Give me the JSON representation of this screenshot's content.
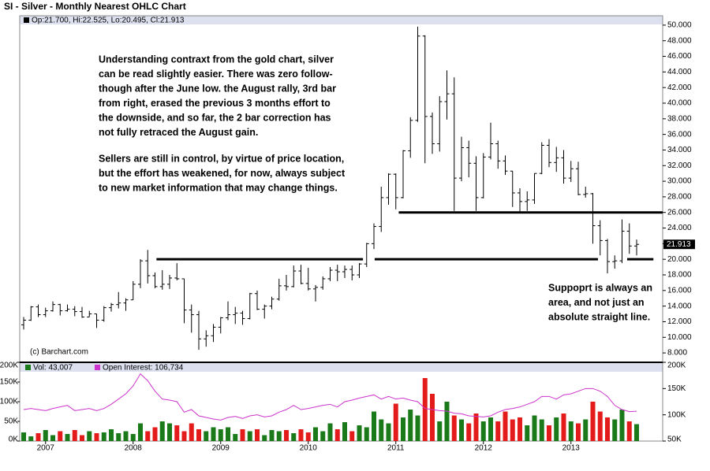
{
  "chart_data": {
    "type": "ohlc",
    "title": "SI - Silver - Monthly Nearest OHLC Chart",
    "price_legend": "Op:21.700, Hi:22.525, Lo:20.495, Cl:21.913",
    "volume_legend": "Vol: 43,007",
    "oi_legend": "Open Interest: 106,734",
    "copyright": "(c) Barchart.com",
    "last_label": "21.913",
    "annotations": [
      {
        "lines": [
          "Understanding contraxt from the gold chart, silver",
          "can be read slightly easier.  There was zero follow-",
          "though after the June low.  the August rally, 3rd bar",
          "from right, erased the previous 3 months effort to",
          "the downside,  and so far, the 2 bar correction has",
          "not fully retraced the August gain."
        ]
      },
      {
        "lines": [
          "Sellers are still in control, by virtue of price location,",
          "but the effort has weakened, for now,  always subject",
          "to new market information that may change things."
        ]
      },
      {
        "lines": [
          "Suppoprt is always an",
          "area, and not just an",
          "absolute straight line."
        ]
      }
    ],
    "categories": [
      null,
      null,
      null,
      "2007",
      null,
      null,
      null,
      null,
      null,
      null,
      null,
      null,
      null,
      null,
      null,
      "2008",
      null,
      null,
      null,
      null,
      null,
      null,
      null,
      null,
      null,
      null,
      null,
      "2009",
      null,
      null,
      null,
      null,
      null,
      null,
      null,
      null,
      null,
      null,
      null,
      "2010",
      null,
      null,
      null,
      null,
      null,
      null,
      null,
      null,
      null,
      null,
      null,
      "2011",
      null,
      null,
      null,
      null,
      null,
      null,
      null,
      null,
      null,
      null,
      null,
      "2012",
      null,
      null,
      null,
      null,
      null,
      null,
      null,
      null,
      null,
      null,
      null,
      "2013",
      null,
      null,
      null,
      null,
      null,
      null,
      null,
      null,
      null
    ],
    "ohlc": {
      "color": "#000000",
      "open": [
        11.6,
        12.2,
        13.9,
        12.9,
        13.4,
        14.2,
        13.4,
        13.6,
        13.3,
        12.6,
        13.0,
        12.2,
        13.8,
        14.2,
        14.4,
        14.8,
        16.8,
        19.8,
        17.9,
        16.5,
        16.8,
        17.6,
        17.5,
        13.5,
        12.9,
        9.8,
        10.2,
        11.3,
        12.5,
        12.9,
        13.1,
        12.4,
        15.6,
        13.6,
        14.0,
        14.9,
        16.6,
        16.5,
        18.5,
        16.9,
        16.2,
        16.4,
        17.5,
        18.6,
        18.4,
        18.7,
        18.0,
        19.4,
        22.0,
        24.2,
        27.9,
        30.9,
        27.9,
        33.9,
        37.8,
        48.6,
        38.3,
        34.8,
        40.2,
        41.2,
        30.4,
        34.3,
        32.3,
        27.9,
        33.1,
        34.8,
        32.6,
        31.3,
        28.5,
        27.4,
        27.6,
        31.0,
        34.6,
        32.4,
        33.0,
        30.4,
        31.6,
        28.3,
        28.4,
        24.3,
        22.4,
        19.7,
        19.8,
        23.6,
        21.7
      ],
      "high": [
        12.6,
        14.0,
        14.2,
        13.8,
        14.6,
        14.3,
        14.2,
        14.0,
        13.9,
        13.4,
        13.0,
        14.0,
        14.4,
        15.8,
        15.0,
        17.2,
        20.0,
        21.2,
        18.3,
        18.6,
        18.0,
        19.5,
        17.5,
        14.2,
        13.4,
        10.9,
        11.7,
        12.6,
        14.6,
        13.9,
        13.4,
        15.7,
        16.0,
        14.2,
        15.2,
        17.5,
        18.0,
        19.2,
        19.3,
        18.9,
        16.7,
        17.8,
        19.0,
        19.3,
        19.2,
        19.2,
        19.5,
        22.1,
        24.6,
        29.3,
        31.0,
        31.0,
        34.0,
        38.2,
        49.8,
        48.7,
        38.8,
        40.9,
        44.2,
        43.3,
        35.7,
        35.2,
        33.2,
        33.6,
        37.5,
        35.2,
        33.3,
        31.3,
        29.1,
        28.7,
        31.0,
        35.0,
        35.4,
        34.4,
        34.0,
        32.6,
        32.5,
        29.3,
        28.5,
        25.0,
        22.6,
        20.5,
        25.1,
        24.6,
        22.525
      ],
      "low": [
        11.0,
        12.1,
        12.6,
        12.6,
        13.3,
        12.8,
        13.3,
        12.7,
        12.5,
        12.6,
        11.2,
        12.0,
        13.3,
        13.7,
        13.4,
        14.8,
        16.3,
        16.9,
        16.3,
        16.1,
        16.2,
        17.3,
        11.8,
        10.6,
        8.4,
        8.8,
        9.4,
        10.5,
        12.2,
        11.7,
        11.6,
        12.3,
        13.5,
        12.4,
        13.6,
        14.7,
        16.0,
        16.4,
        16.8,
        16.0,
        14.6,
        16.1,
        17.2,
        17.2,
        17.6,
        17.3,
        17.6,
        19.0,
        21.3,
        23.5,
        27.0,
        26.4,
        27.8,
        33.0,
        37.6,
        32.3,
        33.5,
        33.8,
        37.9,
        26.2,
        30.0,
        30.5,
        26.2,
        27.8,
        32.8,
        31.6,
        30.8,
        26.7,
        26.1,
        26.2,
        27.1,
        30.9,
        31.8,
        31.2,
        29.7,
        29.9,
        28.2,
        27.9,
        22.0,
        20.5,
        18.2,
        18.8,
        19.5,
        20.7,
        20.495
      ],
      "close": [
        12.2,
        13.9,
        12.9,
        13.4,
        14.2,
        13.4,
        13.6,
        13.3,
        12.6,
        13.0,
        12.2,
        13.8,
        14.2,
        14.4,
        14.8,
        16.8,
        19.8,
        17.9,
        16.5,
        16.8,
        17.6,
        17.5,
        13.5,
        12.9,
        9.8,
        10.2,
        11.3,
        12.5,
        12.9,
        13.1,
        12.4,
        15.6,
        13.6,
        14.0,
        14.9,
        16.6,
        16.5,
        18.5,
        16.9,
        16.2,
        16.4,
        17.5,
        18.6,
        18.4,
        18.7,
        18.0,
        19.4,
        22.0,
        24.2,
        27.9,
        30.9,
        27.9,
        33.9,
        37.8,
        48.6,
        38.3,
        34.8,
        40.2,
        41.2,
        30.4,
        34.3,
        32.3,
        27.9,
        33.1,
        34.8,
        32.6,
        31.3,
        28.5,
        27.4,
        27.6,
        31.0,
        34.6,
        32.4,
        33.0,
        30.4,
        31.6,
        28.3,
        28.4,
        24.3,
        22.4,
        19.7,
        19.8,
        23.6,
        21.7,
        21.913
      ]
    },
    "volume": {
      "up_color": "#1a7a1a",
      "down_color": "#e31b1b",
      "values": [
        22000,
        12000,
        20000,
        28000,
        15000,
        25000,
        18000,
        28000,
        15000,
        25000,
        20000,
        22000,
        30000,
        20000,
        25000,
        18000,
        45000,
        25000,
        35000,
        50000,
        45000,
        40000,
        25000,
        45000,
        30000,
        25000,
        35000,
        30000,
        35000,
        18000,
        30000,
        25000,
        30000,
        15000,
        28000,
        25000,
        28000,
        20000,
        30000,
        22000,
        35000,
        25000,
        45000,
        30000,
        48000,
        25000,
        40000,
        35000,
        75000,
        55000,
        45000,
        95000,
        60000,
        80000,
        65000,
        160000,
        120000,
        50000,
        100000,
        65000,
        55000,
        45000,
        70000,
        50000,
        60000,
        50000,
        75000,
        55000,
        60000,
        40000,
        65000,
        55000,
        40000,
        60000,
        70000,
        50000,
        45000,
        55000,
        100000,
        75000,
        60000,
        55000,
        80000,
        50000,
        43007
      ]
    },
    "open_interest": {
      "color": "#cc33cc",
      "axis": "y2",
      "values": [
        110000,
        112000,
        110000,
        108000,
        112000,
        115000,
        118000,
        108000,
        110000,
        112000,
        108000,
        112000,
        120000,
        130000,
        140000,
        155000,
        178000,
        165000,
        145000,
        130000,
        128000,
        125000,
        105000,
        110000,
        98000,
        95000,
        92000,
        90000,
        95000,
        97000,
        93000,
        98000,
        100000,
        96000,
        98000,
        105000,
        110000,
        118000,
        110000,
        112000,
        115000,
        118000,
        120000,
        115000,
        125000,
        128000,
        132000,
        135000,
        138000,
        130000,
        135000,
        130000,
        132000,
        128000,
        125000,
        112000,
        110000,
        108000,
        107000,
        103000,
        102000,
        98000,
        97000,
        96000,
        98000,
        105000,
        110000,
        112000,
        115000,
        120000,
        125000,
        135000,
        135000,
        130000,
        138000,
        140000,
        145000,
        150000,
        150000,
        145000,
        135000,
        118000,
        110000,
        106000,
        106734
      ]
    },
    "support_lines": [
      {
        "y": 20,
        "x0": 18.2,
        "x1": 46.5
      },
      {
        "y": 26,
        "x0": 51.4,
        "x1": 87.6
      },
      {
        "y": 20,
        "x0": 48.1,
        "x1": 78.7
      },
      {
        "y": 20,
        "x0": 82.7,
        "x1": 86.3
      }
    ],
    "ylim": [
      7,
      51
    ],
    "yticks": [
      {
        "value": 8,
        "label": "8.000"
      },
      {
        "value": 10,
        "label": "10.000"
      },
      {
        "value": 12,
        "label": "12.000"
      },
      {
        "value": 14,
        "label": "14.000"
      },
      {
        "value": 16,
        "label": "16.000"
      },
      {
        "value": 18,
        "label": "18.000"
      },
      {
        "value": 20,
        "label": "20.000"
      },
      {
        "value": 22,
        "label": "22.000"
      },
      {
        "value": 24,
        "label": "24.000"
      },
      {
        "value": 26,
        "label": "26.000"
      },
      {
        "value": 28,
        "label": "28.000"
      },
      {
        "value": 30,
        "label": "30.000"
      },
      {
        "value": 32,
        "label": "32.000"
      },
      {
        "value": 34,
        "label": "34.000"
      },
      {
        "value": 36,
        "label": "36.000"
      },
      {
        "value": 38,
        "label": "38.000"
      },
      {
        "value": 40,
        "label": "40.000"
      },
      {
        "value": 42,
        "label": "42.000"
      },
      {
        "value": 44,
        "label": "44.000"
      },
      {
        "value": 46,
        "label": "46.000"
      },
      {
        "value": 48,
        "label": "48.000"
      },
      {
        "value": 50,
        "label": "50.000"
      }
    ],
    "vlim": [
      0,
      200000
    ],
    "vticks": [
      {
        "value": 0,
        "label": "0K"
      },
      {
        "value": 50000,
        "label": "50K"
      },
      {
        "value": 100000,
        "label": "100K"
      },
      {
        "value": 150000,
        "label": "150K"
      },
      {
        "value": 200000,
        "label": "200K"
      }
    ],
    "y2lim": [
      50000,
      200000
    ],
    "y2ticks": [
      {
        "value": 50000,
        "label": "50K"
      },
      {
        "value": 100000,
        "label": "100K"
      },
      {
        "value": 150000,
        "label": "150K"
      },
      {
        "value": 200000,
        "label": "200K"
      }
    ]
  }
}
